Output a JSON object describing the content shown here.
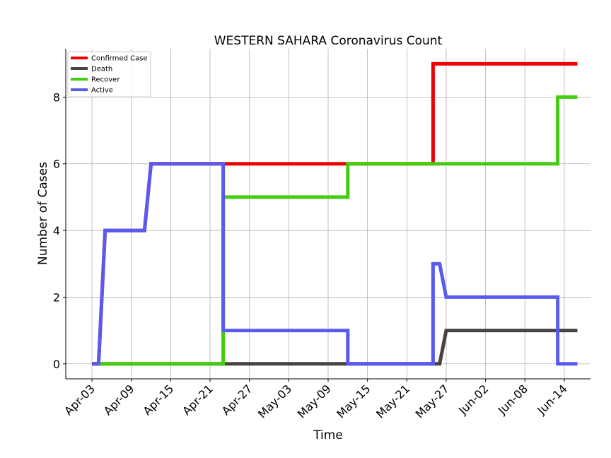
{
  "chart_data": {
    "type": "line",
    "title": "WESTERN SAHARA Coronavirus Count",
    "xlabel": "Time",
    "ylabel": "Number of Cases",
    "x_start": "2020-04-03",
    "x_end": "2020-06-16",
    "xlim": [
      "2020-03-30",
      "2020-06-18"
    ],
    "ylim": [
      -0.45,
      9.45
    ],
    "grid": true,
    "legend_position": "top-left",
    "x_ticks": [
      "Apr-03",
      "Apr-09",
      "Apr-15",
      "Apr-21",
      "Apr-27",
      "May-03",
      "May-09",
      "May-15",
      "May-21",
      "May-27",
      "Jun-02",
      "Jun-08",
      "Jun-14"
    ],
    "x_tick_dates": [
      "2020-04-03",
      "2020-04-09",
      "2020-04-15",
      "2020-04-21",
      "2020-04-27",
      "2020-05-03",
      "2020-05-09",
      "2020-05-15",
      "2020-05-21",
      "2020-05-27",
      "2020-06-02",
      "2020-06-08",
      "2020-06-14"
    ],
    "y_ticks": [
      0,
      2,
      4,
      6,
      8
    ],
    "y_tick_labels": [
      "0",
      "2",
      "4",
      "6",
      "8"
    ],
    "series": [
      {
        "name": "Confirmed Case",
        "color": "#ee0000",
        "points": [
          [
            "2020-04-03",
            0
          ],
          [
            "2020-04-04",
            0
          ],
          [
            "2020-04-05",
            4
          ],
          [
            "2020-04-11",
            4
          ],
          [
            "2020-04-12",
            6
          ],
          [
            "2020-05-25",
            6
          ],
          [
            "2020-05-25",
            9
          ],
          [
            "2020-06-16",
            9
          ]
        ]
      },
      {
        "name": "Death",
        "color": "#444444",
        "points": [
          [
            "2020-04-03",
            0
          ],
          [
            "2020-05-26",
            0
          ],
          [
            "2020-05-27",
            1
          ],
          [
            "2020-06-16",
            1
          ]
        ]
      },
      {
        "name": "Recover",
        "color": "#44cc11",
        "points": [
          [
            "2020-04-04",
            0
          ],
          [
            "2020-04-23",
            0
          ],
          [
            "2020-04-23",
            5
          ],
          [
            "2020-05-12",
            5
          ],
          [
            "2020-05-12",
            6
          ],
          [
            "2020-06-13",
            6
          ],
          [
            "2020-06-13",
            8
          ],
          [
            "2020-06-16",
            8
          ]
        ]
      },
      {
        "name": "Active",
        "color": "#5a5af0",
        "points": [
          [
            "2020-04-03",
            0
          ],
          [
            "2020-04-04",
            0
          ],
          [
            "2020-04-05",
            4
          ],
          [
            "2020-04-11",
            4
          ],
          [
            "2020-04-12",
            6
          ],
          [
            "2020-04-23",
            6
          ],
          [
            "2020-04-23",
            1
          ],
          [
            "2020-05-12",
            1
          ],
          [
            "2020-05-12",
            0
          ],
          [
            "2020-05-25",
            0
          ],
          [
            "2020-05-25",
            3
          ],
          [
            "2020-05-26",
            3
          ],
          [
            "2020-05-27",
            2
          ],
          [
            "2020-06-13",
            2
          ],
          [
            "2020-06-13",
            0
          ],
          [
            "2020-06-16",
            0
          ]
        ]
      }
    ]
  }
}
